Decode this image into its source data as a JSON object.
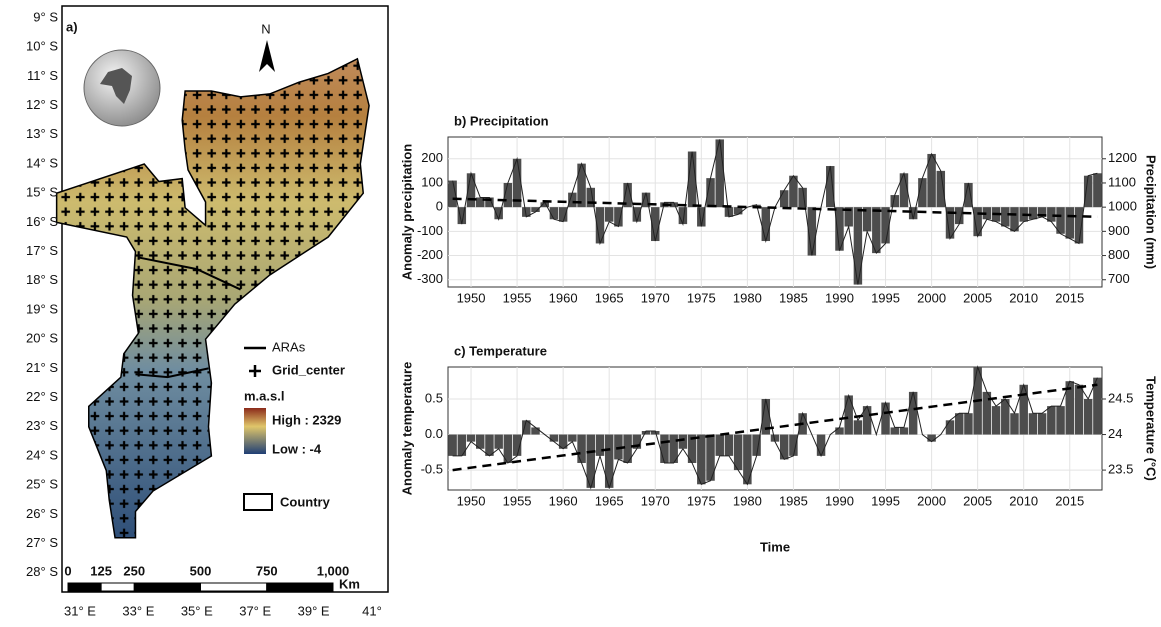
{
  "map": {
    "panel": "a)",
    "north": "N",
    "lat_labels": [
      "9° S",
      "10° S",
      "11° S",
      "12° S",
      "13° S",
      "14° S",
      "15° S",
      "16° S",
      "17° S",
      "18° S",
      "19° S",
      "20° S",
      "21° S",
      "22° S",
      "23° S",
      "24° S",
      "25° S",
      "26° S",
      "27° S",
      "28° S"
    ],
    "lon_labels": [
      "31° E",
      "33° E",
      "35° E",
      "37° E",
      "39° E",
      "41°"
    ],
    "legend": {
      "aras": "ARAs",
      "grid": "Grid_center",
      "unit": "m.a.s.l",
      "high": "High : 2329",
      "low": "Low : -4",
      "country": "Country"
    },
    "scale": {
      "ticks": [
        0,
        125,
        250,
        500,
        750,
        {
          "value": 1000,
          "label": "1,000"
        }
      ],
      "unit": "Km"
    }
  },
  "chart_data": [
    {
      "type": "bar",
      "title": "b) Precipitation",
      "ylabel": "Anomaly precipitation",
      "y2label": "Precipitation (mm)",
      "x": [
        1948,
        1949,
        1950,
        1951,
        1952,
        1953,
        1954,
        1955,
        1956,
        1957,
        1958,
        1959,
        1960,
        1961,
        1962,
        1963,
        1964,
        1965,
        1966,
        1967,
        1968,
        1969,
        1970,
        1971,
        1972,
        1973,
        1974,
        1975,
        1976,
        1977,
        1978,
        1979,
        1980,
        1981,
        1982,
        1983,
        1984,
        1985,
        1986,
        1987,
        1988,
        1989,
        1990,
        1991,
        1992,
        1993,
        1994,
        1995,
        1996,
        1997,
        1998,
        1999,
        2000,
        2001,
        2002,
        2003,
        2004,
        2005,
        2006,
        2007,
        2008,
        2009,
        2010,
        2011,
        2012,
        2013,
        2014,
        2015,
        2016,
        2017,
        2018
      ],
      "values": [
        110,
        -70,
        140,
        40,
        40,
        -50,
        100,
        200,
        -40,
        -20,
        20,
        -50,
        -60,
        60,
        180,
        80,
        -150,
        -60,
        -80,
        100,
        -60,
        60,
        -140,
        20,
        20,
        -70,
        230,
        -80,
        120,
        280,
        -40,
        -30,
        0,
        10,
        -140,
        0,
        70,
        130,
        80,
        -200,
        0,
        170,
        -180,
        -80,
        -320,
        -100,
        -190,
        -150,
        50,
        140,
        -50,
        120,
        220,
        150,
        -130,
        -70,
        100,
        -120,
        -50,
        -60,
        -80,
        -100,
        -60,
        -50,
        -40,
        -60,
        -110,
        -130,
        -150,
        130,
        140
      ],
      "trend_x": [
        1948,
        2018
      ],
      "trend_values": [
        35,
        -40
      ],
      "color": "#4d4d4d",
      "xlim": [
        1947.5,
        2018.5
      ],
      "xticks": [
        1950,
        1955,
        1960,
        1965,
        1970,
        1975,
        1980,
        1985,
        1990,
        1995,
        2000,
        2005,
        2010,
        2015
      ],
      "ylim": [
        -330,
        290
      ],
      "yticks": [
        -300,
        -200,
        -100,
        0,
        100,
        200
      ],
      "y2lim": [
        670,
        1290
      ],
      "y2ticks": [
        700,
        800,
        900,
        1000,
        1100,
        1200
      ],
      "grid": true
    },
    {
      "type": "bar",
      "title": "c) Temperature",
      "ylabel": "Anomaly temperature",
      "y2label": "Temperature (°C)",
      "xlabel": "Time",
      "x": [
        1948,
        1949,
        1950,
        1951,
        1952,
        1953,
        1954,
        1955,
        1956,
        1957,
        1958,
        1959,
        1960,
        1961,
        1962,
        1963,
        1964,
        1965,
        1966,
        1967,
        1968,
        1969,
        1970,
        1971,
        1972,
        1973,
        1974,
        1975,
        1976,
        1977,
        1978,
        1979,
        1980,
        1981,
        1982,
        1983,
        1984,
        1985,
        1986,
        1987,
        1988,
        1989,
        1990,
        1991,
        1992,
        1993,
        1994,
        1995,
        1996,
        1997,
        1998,
        1999,
        2000,
        2001,
        2002,
        2003,
        2004,
        2005,
        2006,
        2007,
        2008,
        2009,
        2010,
        2011,
        2012,
        2013,
        2014,
        2015,
        2016,
        2017,
        2018
      ],
      "values": [
        -0.3,
        -0.3,
        -0.1,
        -0.2,
        -0.3,
        -0.2,
        -0.4,
        -0.3,
        0.2,
        0.1,
        0.0,
        -0.1,
        -0.2,
        -0.1,
        -0.4,
        -0.75,
        -0.3,
        -0.75,
        -0.35,
        -0.4,
        -0.2,
        0.05,
        0.05,
        -0.4,
        -0.4,
        -0.2,
        -0.4,
        -0.7,
        -0.65,
        -0.3,
        -0.3,
        -0.5,
        -0.7,
        -0.3,
        0.5,
        -0.1,
        -0.35,
        -0.3,
        0.3,
        0.0,
        -0.3,
        0.0,
        0.1,
        0.55,
        0.2,
        0.4,
        0.0,
        0.45,
        0.1,
        0.1,
        0.6,
        0.0,
        -0.1,
        0.0,
        0.2,
        0.3,
        0.3,
        0.95,
        0.6,
        0.4,
        0.5,
        0.3,
        0.7,
        0.3,
        0.3,
        0.4,
        0.4,
        0.75,
        0.7,
        0.5,
        0.8
      ],
      "trend_x": [
        1948,
        2018
      ],
      "trend_values": [
        -0.5,
        0.7
      ],
      "color": "#4d4d4d",
      "xlim": [
        1947.5,
        2018.5
      ],
      "xticks": [
        1950,
        1955,
        1960,
        1965,
        1970,
        1975,
        1980,
        1985,
        1990,
        1995,
        2000,
        2005,
        2010,
        2015
      ],
      "ylim": [
        -0.78,
        0.95
      ],
      "yticks": [
        -0.5,
        {
          "value": 0,
          "label": "0.0"
        },
        0.5
      ],
      "y2lim": [
        23.22,
        24.95
      ],
      "y2ticks": [
        23.5,
        24,
        24.5
      ],
      "grid": true
    }
  ]
}
